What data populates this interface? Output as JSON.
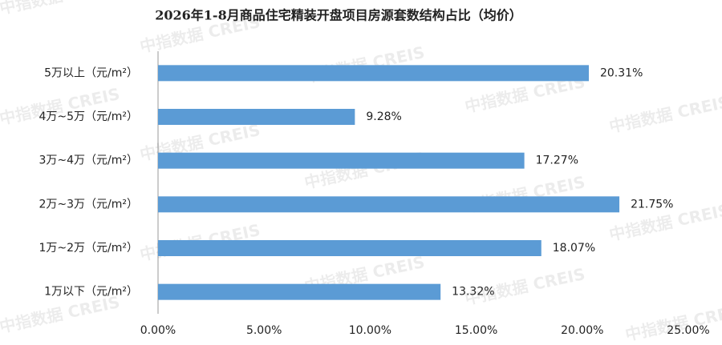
{
  "chart_data": {
    "type": "hbar",
    "title": "2026年1-8月商品住宅精装开盘项目房源套数结构占比（均价）",
    "categories": [
      "5万以上（元/m²）",
      "4万~5万（元/m²）",
      "3万~4万（元/m²）",
      "2万~3万（元/m²）",
      "1万~2万（元/m²）",
      "1万以下（元/m²）"
    ],
    "values": [
      20.31,
      9.28,
      17.27,
      21.75,
      18.07,
      13.32
    ],
    "value_labels": [
      "20.31%",
      "9.28%",
      "17.27%",
      "21.75%",
      "18.07%",
      "13.32%"
    ],
    "color": "#5b9bd5",
    "xlim": [
      0,
      25
    ],
    "xticks": [
      {
        "value": 0,
        "label": "0.00%"
      },
      {
        "value": 5,
        "label": "5.00%"
      },
      {
        "value": 10,
        "label": "10.00%"
      },
      {
        "value": 15,
        "label": "15.00%"
      },
      {
        "value": 20,
        "label": "20.00%"
      },
      {
        "value": 25,
        "label": "25.00%"
      }
    ],
    "grid": false
  },
  "watermark": "中指数据 CREIS"
}
